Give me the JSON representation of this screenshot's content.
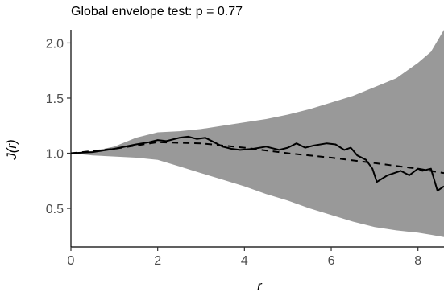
{
  "chart_data": {
    "type": "line",
    "title": "Global envelope test: p = 0.77",
    "xlabel": "r",
    "ylabel": "J(r)",
    "xlim": [
      0,
      8.6
    ],
    "ylim": [
      0.15,
      2.12
    ],
    "xticks": [
      "0",
      "2",
      "4",
      "6",
      "8"
    ],
    "yticks": [
      "0.5",
      "1.0",
      "1.5",
      "2.0"
    ],
    "grid": false,
    "legend": "none",
    "series": [
      {
        "role": "envelope",
        "color": "#999999",
        "x": [
          0,
          0.5,
          1,
          1.5,
          2,
          2.5,
          3,
          3.5,
          4,
          4.5,
          5,
          5.5,
          6,
          6.5,
          7,
          7.5,
          8,
          8.3,
          8.6
        ],
        "upper": [
          1.0,
          1.02,
          1.06,
          1.14,
          1.19,
          1.2,
          1.22,
          1.25,
          1.28,
          1.31,
          1.35,
          1.4,
          1.46,
          1.52,
          1.6,
          1.68,
          1.82,
          1.92,
          2.12
        ],
        "lower": [
          1.0,
          0.98,
          0.97,
          0.96,
          0.94,
          0.88,
          0.82,
          0.76,
          0.7,
          0.63,
          0.57,
          0.5,
          0.44,
          0.38,
          0.33,
          0.3,
          0.28,
          0.26,
          0.24
        ]
      },
      {
        "role": "theoretical",
        "style": "dashed",
        "color": "#000000",
        "x": [
          0,
          1,
          2,
          3,
          4,
          5,
          6,
          7,
          8,
          8.6
        ],
        "y": [
          1.0,
          1.04,
          1.1,
          1.09,
          1.05,
          1.0,
          0.96,
          0.91,
          0.86,
          0.82
        ]
      },
      {
        "role": "observed",
        "style": "solid",
        "color": "#000000",
        "x": [
          0,
          0.5,
          1,
          1.5,
          1.8,
          2,
          2.2,
          2.5,
          2.7,
          2.9,
          3.1,
          3.3,
          3.5,
          3.7,
          3.9,
          4.2,
          4.5,
          4.8,
          5.0,
          5.2,
          5.4,
          5.6,
          5.9,
          6.1,
          6.3,
          6.45,
          6.6,
          6.8,
          6.95,
          7.05,
          7.3,
          7.6,
          7.8,
          8.0,
          8.1,
          8.3,
          8.45,
          8.6
        ],
        "y": [
          1.0,
          1.01,
          1.04,
          1.08,
          1.1,
          1.12,
          1.11,
          1.14,
          1.15,
          1.13,
          1.14,
          1.1,
          1.06,
          1.04,
          1.03,
          1.04,
          1.06,
          1.03,
          1.05,
          1.09,
          1.05,
          1.07,
          1.09,
          1.08,
          1.03,
          1.05,
          0.98,
          0.94,
          0.86,
          0.74,
          0.8,
          0.84,
          0.8,
          0.86,
          0.84,
          0.86,
          0.66,
          0.7
        ]
      }
    ]
  }
}
